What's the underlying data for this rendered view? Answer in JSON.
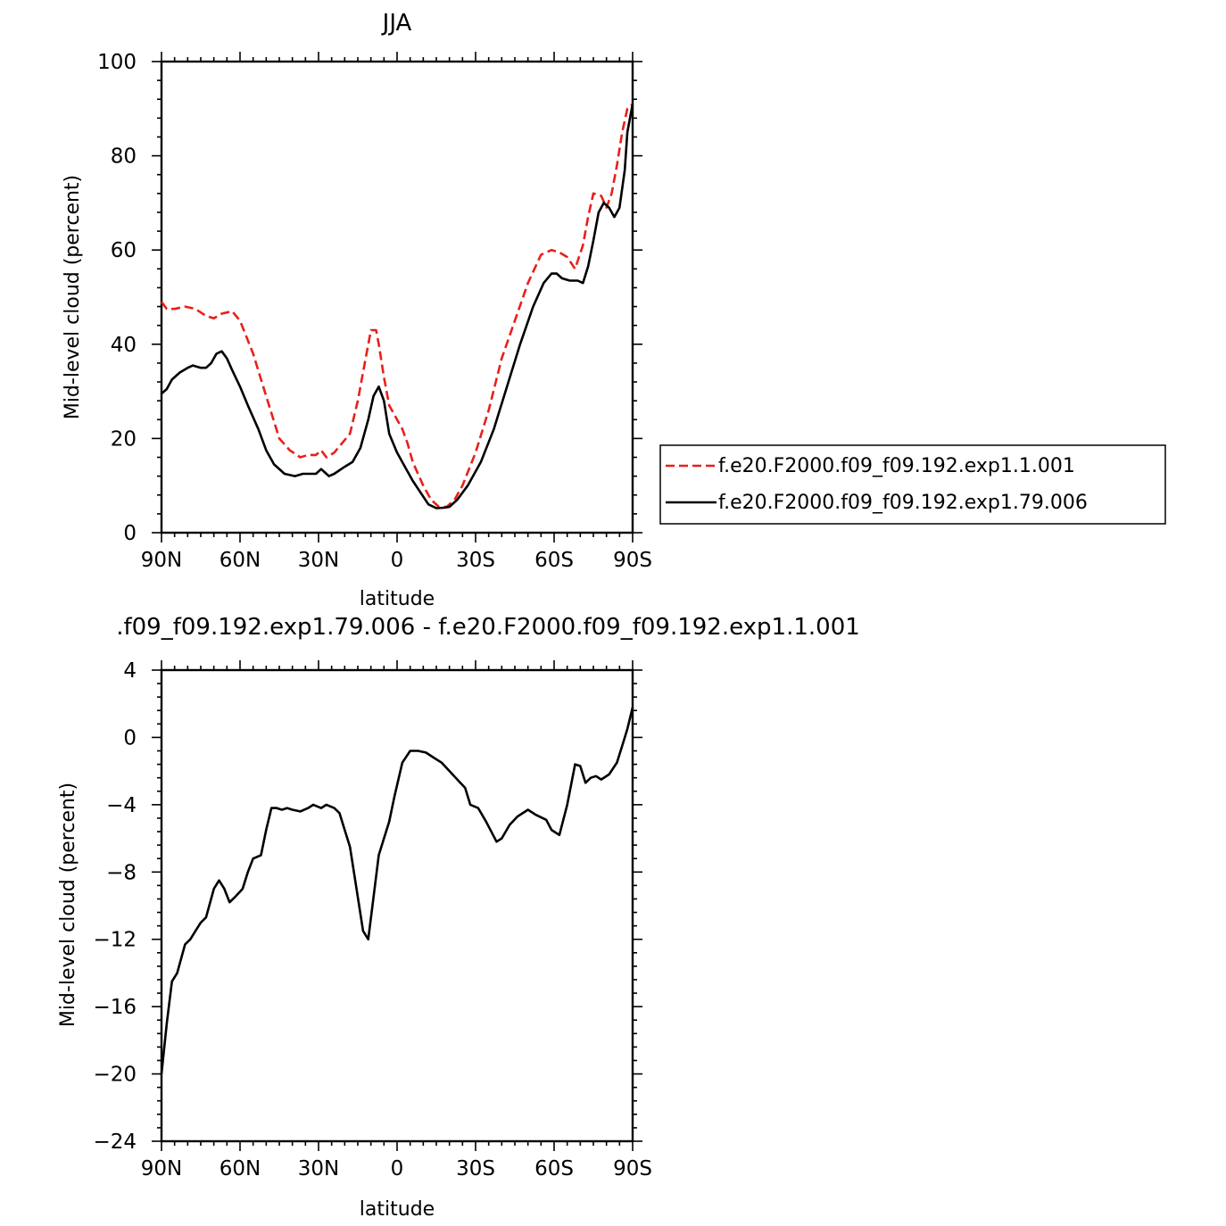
{
  "colors": {
    "red": "#e8201a",
    "black": "#000000"
  },
  "chart_data": [
    {
      "type": "line",
      "title": "JJA",
      "xlabel": "latitude",
      "ylabel": "Mid-level cloud (percent)",
      "x_domain": [
        -90,
        90
      ],
      "x_ticks": [
        -90,
        -60,
        -30,
        0,
        30,
        60,
        90
      ],
      "x_tick_labels": [
        "90N",
        "60N",
        "30N",
        "0",
        "30S",
        "60S",
        "90S"
      ],
      "ylim": [
        0,
        100
      ],
      "y_ticks": [
        0,
        20,
        40,
        60,
        80,
        100
      ],
      "y_tick_labels": [
        "0",
        "20",
        "40",
        "60",
        "80",
        "100"
      ],
      "legend_position": "right",
      "series": [
        {
          "name": "f.e20.F2000.f09_f09.192.exp1.1.001",
          "color": "#e8201a",
          "dash": true,
          "x": [
            -90,
            -88,
            -85,
            -81,
            -77,
            -73,
            -70,
            -67,
            -63,
            -60,
            -55,
            -50,
            -45,
            -41,
            -37,
            -34,
            -31,
            -29,
            -27,
            -24,
            -21,
            -18,
            -15,
            -12,
            -10,
            -8,
            -7,
            -5,
            -3,
            0,
            2,
            4,
            6,
            10,
            13,
            16,
            19,
            22,
            25,
            30,
            35,
            40,
            45,
            50,
            55,
            59,
            62,
            65,
            68,
            71,
            73,
            75,
            78,
            80,
            82,
            84,
            86,
            88,
            90
          ],
          "y": [
            49,
            47.5,
            47.5,
            48,
            47.5,
            46,
            45.5,
            46.5,
            47,
            45,
            38,
            29,
            20,
            17.5,
            16,
            16.5,
            16.5,
            17.5,
            16,
            17,
            19,
            21,
            28,
            37,
            43,
            43,
            40,
            33,
            27,
            24,
            22,
            19,
            15,
            10,
            7,
            5.5,
            5.5,
            7,
            10,
            17,
            26,
            37,
            45,
            53,
            59,
            60,
            59.5,
            58.5,
            56,
            61,
            67,
            72,
            71.5,
            69,
            72,
            78,
            85,
            90,
            91
          ]
        },
        {
          "name": "f.e20.F2000.f09_f09.192.exp1.79.006",
          "color": "#000000",
          "dash": false,
          "x": [
            -90,
            -88,
            -86,
            -83,
            -80,
            -78,
            -75,
            -73,
            -71,
            -69,
            -67,
            -65,
            -63,
            -60,
            -57,
            -53,
            -50,
            -47,
            -43,
            -39,
            -36,
            -34,
            -31,
            -29,
            -28,
            -26,
            -24,
            -20,
            -17,
            -14,
            -11,
            -9,
            -7,
            -5,
            -3,
            0,
            3,
            6,
            9,
            12,
            15,
            18,
            20,
            23,
            27,
            32,
            37,
            42,
            47,
            52,
            56,
            59,
            61,
            63,
            66,
            69,
            71,
            73,
            75,
            77,
            79,
            81,
            83,
            85,
            87,
            88,
            90
          ],
          "y": [
            29.5,
            30.5,
            32.5,
            34,
            35,
            35.5,
            35,
            35,
            36,
            38,
            38.5,
            37,
            34.5,
            31,
            27,
            22,
            17.5,
            14.5,
            12.5,
            12,
            12.5,
            12.5,
            12.5,
            13.5,
            13,
            12,
            12.5,
            14,
            15,
            18,
            24,
            29,
            31,
            28,
            21,
            17,
            14,
            11,
            8.5,
            6,
            5.2,
            5.3,
            5.5,
            7,
            10,
            15,
            22,
            31,
            40,
            48,
            53,
            55,
            55,
            54,
            53.5,
            53.5,
            53,
            56.5,
            62,
            68,
            70,
            69,
            67,
            69,
            77,
            85,
            91
          ]
        }
      ]
    },
    {
      "type": "line",
      "title": ".f09_f09.192.exp1.79.006 - f.e20.F2000.f09_f09.192.exp1.1.001",
      "xlabel": "latitude",
      "ylabel": "Mid-level cloud (percent)",
      "x_domain": [
        -90,
        90
      ],
      "x_ticks": [
        -90,
        -60,
        -30,
        0,
        30,
        60,
        90
      ],
      "x_tick_labels": [
        "90N",
        "60N",
        "30N",
        "0",
        "30S",
        "60S",
        "90S"
      ],
      "ylim": [
        -24,
        4
      ],
      "y_ticks": [
        -24,
        -20,
        -16,
        -12,
        -8,
        -4,
        0,
        4
      ],
      "y_tick_labels": [
        "−24",
        "−20",
        "−16",
        "−12",
        "−8",
        "−4",
        "0",
        "4"
      ],
      "series": [
        {
          "color": "#000000",
          "dash": false,
          "x": [
            -90,
            -88,
            -86,
            -84,
            -81,
            -79,
            -77,
            -75,
            -73,
            -70,
            -68,
            -66,
            -64,
            -62,
            -59,
            -57,
            -55,
            -52,
            -50,
            -48,
            -46,
            -44,
            -42,
            -40,
            -37,
            -34,
            -32,
            -29,
            -27,
            -24,
            -22,
            -20,
            -18,
            -16,
            -13,
            -11,
            -9,
            -7,
            -5,
            -3,
            -1,
            2,
            5,
            8,
            11,
            14,
            17,
            20,
            23,
            26,
            28,
            31,
            34,
            38,
            40,
            43,
            46,
            50,
            53,
            57,
            59,
            62,
            65,
            68,
            70,
            72,
            74,
            76,
            78,
            81,
            84,
            86,
            88,
            90
          ],
          "y": [
            -20,
            -17,
            -14.5,
            -14,
            -12.3,
            -12,
            -11.5,
            -11,
            -10.7,
            -9,
            -8.5,
            -9,
            -9.8,
            -9.5,
            -9,
            -8,
            -7.2,
            -7,
            -5.5,
            -4.2,
            -4.2,
            -4.3,
            -4.2,
            -4.3,
            -4.4,
            -4.2,
            -4,
            -4.2,
            -4,
            -4.2,
            -4.5,
            -5.5,
            -6.5,
            -8.5,
            -11.5,
            -12,
            -9.5,
            -7,
            -6,
            -5,
            -3.5,
            -1.5,
            -0.8,
            -0.8,
            -0.9,
            -1.2,
            -1.5,
            -2,
            -2.5,
            -3,
            -4,
            -4.2,
            -5,
            -6.2,
            -6,
            -5.2,
            -4.7,
            -4.3,
            -4.6,
            -4.9,
            -5.5,
            -5.8,
            -4,
            -1.6,
            -1.7,
            -2.7,
            -2.4,
            -2.3,
            -2.5,
            -2.2,
            -1.5,
            -0.5,
            0.5,
            1.8
          ]
        }
      ]
    }
  ]
}
